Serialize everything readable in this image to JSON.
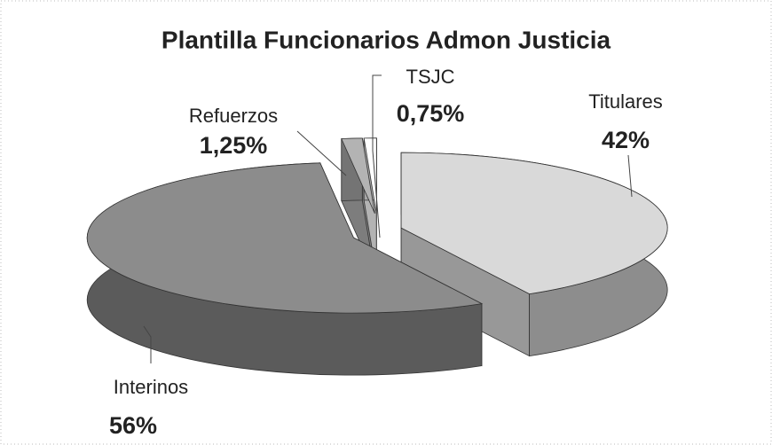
{
  "chart_data": {
    "type": "pie",
    "title": "Plantilla Funcionarios Admon Justicia",
    "categories": [
      "Titulares",
      "Interinos",
      "Refuerzos",
      "TSJC"
    ],
    "values": [
      42,
      56,
      1.25,
      0.75
    ],
    "value_labels": [
      "42%",
      "56%",
      "1,25%",
      "0,75%"
    ],
    "colors": [
      "#d9d9d9",
      "#8c8c8c",
      "#b3b3b3",
      "#ffffff"
    ]
  }
}
